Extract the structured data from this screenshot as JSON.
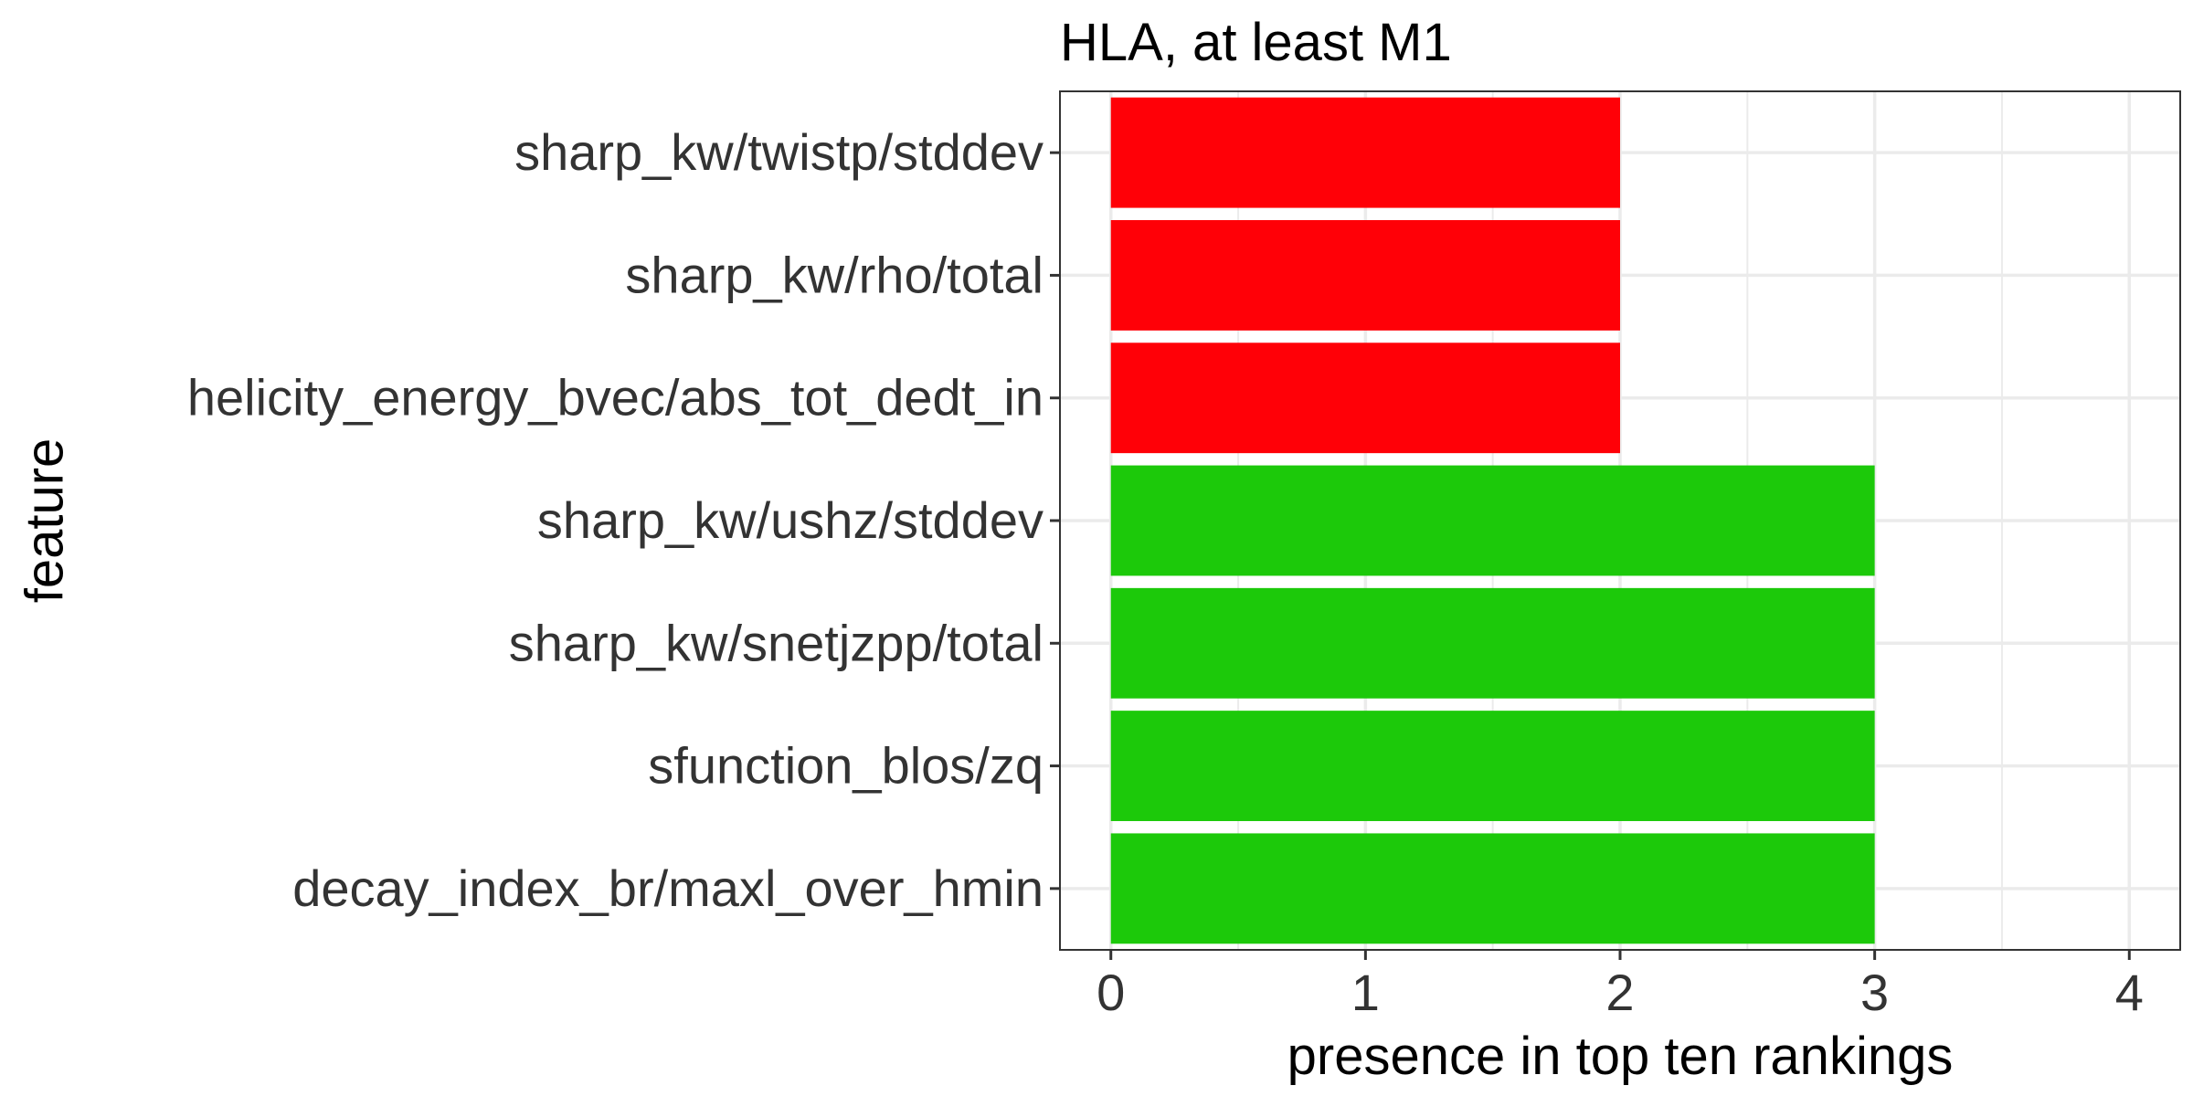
{
  "chart_data": {
    "type": "bar",
    "orientation": "horizontal",
    "title": "HLA, at least M1",
    "xlabel": "presence in top ten rankings",
    "ylabel": "feature",
    "categories": [
      "sharp_kw/twistp/stddev",
      "sharp_kw/rho/total",
      "helicity_energy_bvec/abs_tot_dedt_in",
      "sharp_kw/ushz/stddev",
      "sharp_kw/snetjzpp/total",
      "sfunction_blos/zq",
      "decay_index_br/maxl_over_hmin"
    ],
    "values": [
      2,
      2,
      2,
      3,
      3,
      3,
      3
    ],
    "bar_colors": [
      "#ff0007",
      "#ff0007",
      "#ff0007",
      "#1cc90a",
      "#1cc90a",
      "#1cc90a",
      "#1cc90a"
    ],
    "xlim": [
      -0.2,
      4.2
    ],
    "xticks": [
      0,
      1,
      2,
      3,
      4
    ],
    "grid": true,
    "legend": "none"
  }
}
